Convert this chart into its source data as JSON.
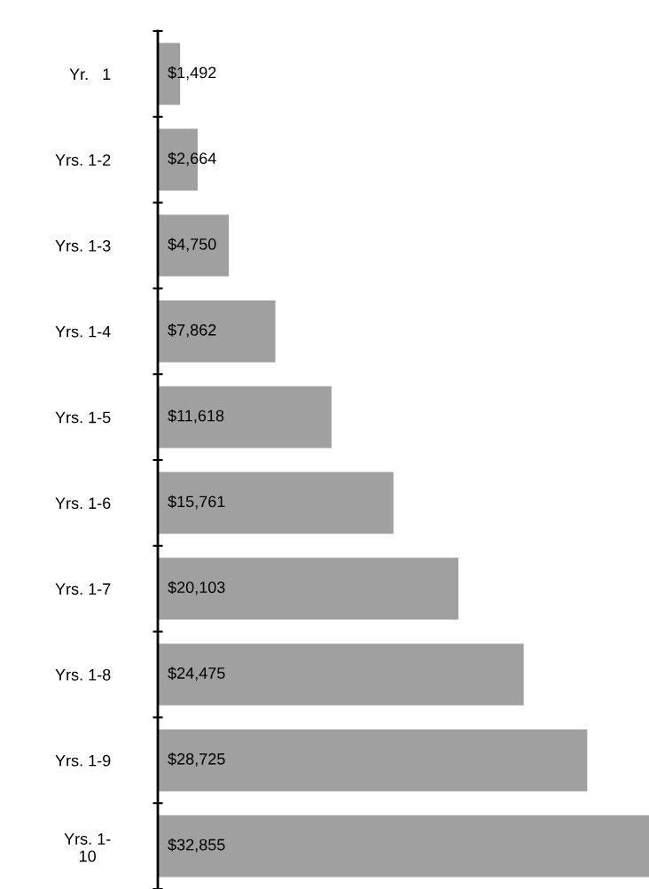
{
  "chart_data": {
    "type": "bar",
    "orientation": "horizontal",
    "categories": [
      "Yr.   1",
      "Yrs. 1-2",
      "Yrs. 1-3",
      "Yrs. 1-4",
      "Yrs. 1-5",
      "Yrs. 1-6",
      "Yrs. 1-7",
      "Yrs. 1-8",
      "Yrs. 1-9",
      "Yrs. 1-\n10"
    ],
    "values": [
      1492,
      2664,
      4750,
      7862,
      11618,
      15761,
      20103,
      24475,
      28725,
      32855
    ],
    "value_labels": [
      "$1,492",
      "$2,664",
      "$4,750",
      "$7,862",
      "$11,618",
      "$15,761",
      "$20,103",
      "$24,475",
      "$28,725",
      "$32,855"
    ],
    "color": "#a0a0a0",
    "grid": false,
    "legend": false,
    "tick_labels": "y"
  }
}
